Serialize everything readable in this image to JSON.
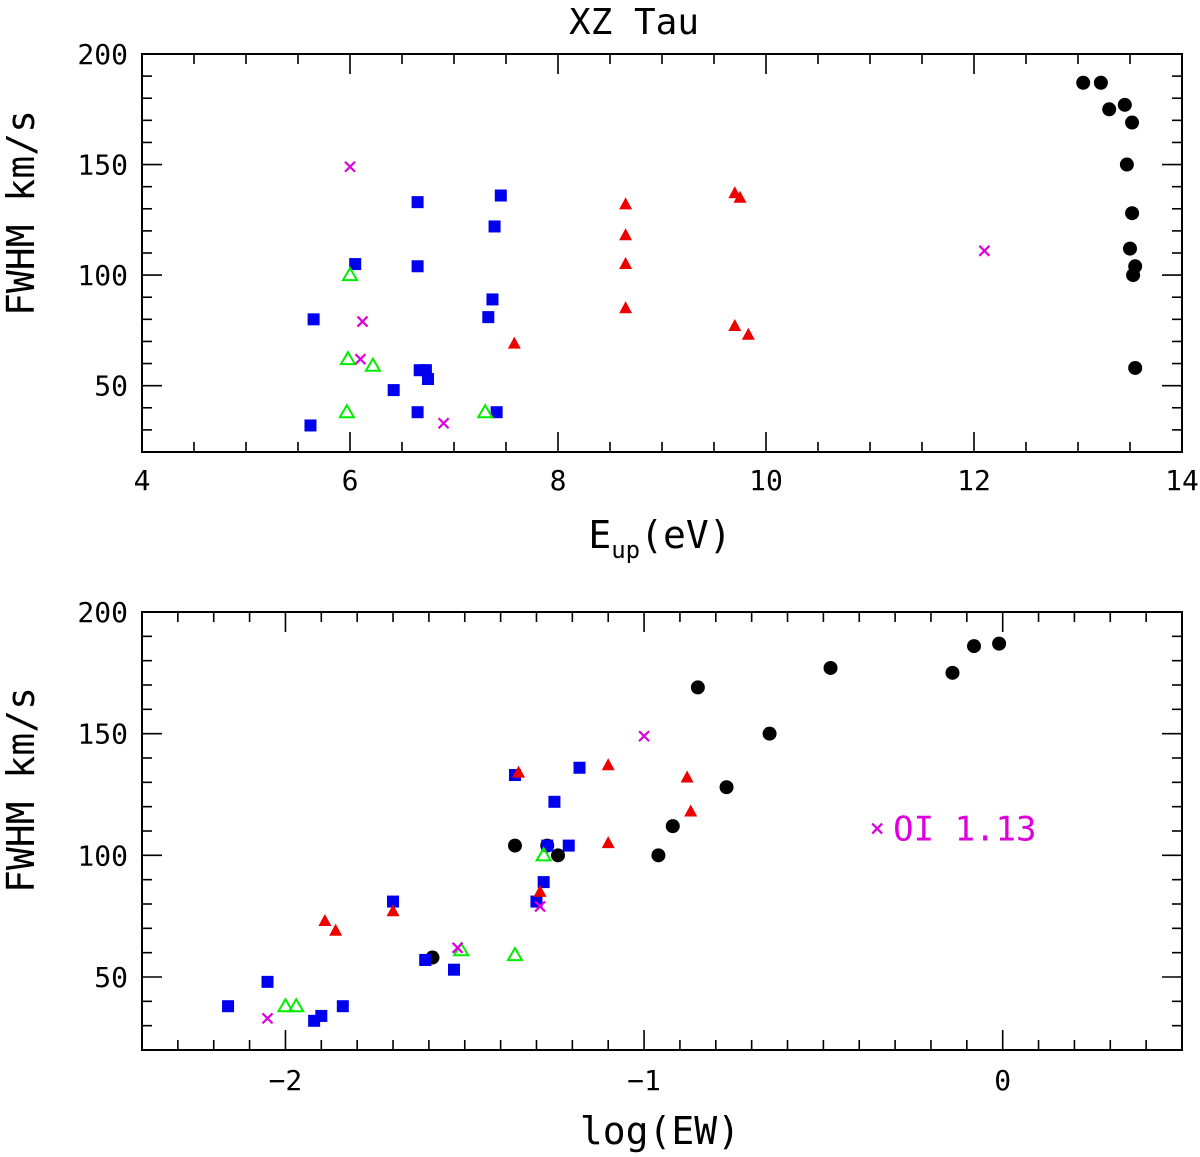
{
  "colors": {
    "black": "#000000",
    "blue": "#0000ee",
    "red": "#ee0000",
    "green": "#00ee00",
    "magenta": "#dd00dd"
  },
  "chart_data": [
    {
      "type": "scatter",
      "title": "XZ Tau",
      "xlabel": "E",
      "xlabel_sub": "up",
      "xlabel_unit": "(eV)",
      "ylabel": "FWHM km/s",
      "xlim": [
        4,
        14
      ],
      "ylim": [
        20,
        200
      ],
      "x_ticks": [
        4,
        6,
        8,
        10,
        12,
        14
      ],
      "x_tick_labels": [
        "4",
        "6",
        "8",
        "10",
        "12",
        "14"
      ],
      "y_ticks": [
        50,
        100,
        150,
        200
      ],
      "y_tick_labels": [
        "50",
        "100",
        "150",
        "200"
      ],
      "series": [
        {
          "name": "black-circles",
          "marker": "circle",
          "color": "black",
          "points": [
            [
              13.05,
              187
            ],
            [
              13.22,
              187
            ],
            [
              13.3,
              175
            ],
            [
              13.45,
              177
            ],
            [
              13.52,
              169
            ],
            [
              13.47,
              150
            ],
            [
              13.52,
              128
            ],
            [
              13.5,
              112
            ],
            [
              13.55,
              104
            ],
            [
              13.53,
              100
            ],
            [
              13.55,
              58
            ]
          ]
        },
        {
          "name": "blue-squares",
          "marker": "square",
          "color": "blue",
          "points": [
            [
              5.62,
              32
            ],
            [
              5.65,
              80
            ],
            [
              6.05,
              105
            ],
            [
              6.42,
              48
            ],
            [
              6.65,
              133
            ],
            [
              6.65,
              104
            ],
            [
              6.67,
              57
            ],
            [
              6.73,
              57
            ],
            [
              6.75,
              53
            ],
            [
              6.65,
              38
            ],
            [
              7.33,
              81
            ],
            [
              7.37,
              89
            ],
            [
              7.39,
              122
            ],
            [
              7.45,
              136
            ],
            [
              7.41,
              38
            ]
          ]
        },
        {
          "name": "red-triangles",
          "marker": "triangle",
          "color": "red",
          "points": [
            [
              7.58,
              69
            ],
            [
              8.65,
              132
            ],
            [
              8.65,
              118
            ],
            [
              8.65,
              105
            ],
            [
              8.65,
              85
            ],
            [
              9.7,
              137
            ],
            [
              9.75,
              135
            ],
            [
              9.7,
              77
            ],
            [
              9.83,
              73
            ]
          ]
        },
        {
          "name": "green-open-triangles",
          "marker": "open-triangle",
          "color": "green",
          "points": [
            [
              6.0,
              100
            ],
            [
              5.98,
              62
            ],
            [
              6.22,
              59
            ],
            [
              5.97,
              38
            ],
            [
              7.3,
              38
            ]
          ]
        },
        {
          "name": "magenta-crosses",
          "marker": "cross",
          "color": "magenta",
          "points": [
            [
              6.0,
              149
            ],
            [
              6.12,
              79
            ],
            [
              6.1,
              62
            ],
            [
              6.9,
              33
            ],
            [
              12.1,
              111
            ]
          ]
        }
      ]
    },
    {
      "type": "scatter",
      "title": "",
      "xlabel": "log(EW)",
      "ylabel": "FWHM km/s",
      "xlim": [
        -2.4,
        0.5
      ],
      "ylim": [
        20,
        200
      ],
      "x_ticks": [
        -2,
        -1,
        0
      ],
      "x_tick_labels": [
        "−2",
        "−1",
        "0"
      ],
      "y_ticks": [
        50,
        100,
        150,
        200
      ],
      "y_tick_labels": [
        "50",
        "100",
        "150",
        "200"
      ],
      "annotation": {
        "label": "OI 1.13",
        "x": -0.35,
        "y": 111,
        "marker": "cross",
        "color": "magenta"
      },
      "series": [
        {
          "name": "black-circles",
          "marker": "circle",
          "color": "black",
          "points": [
            [
              -0.01,
              187
            ],
            [
              -0.08,
              186
            ],
            [
              -0.14,
              175
            ],
            [
              -0.48,
              177
            ],
            [
              -0.85,
              169
            ],
            [
              -0.65,
              150
            ],
            [
              -0.77,
              128
            ],
            [
              -0.92,
              112
            ],
            [
              -0.96,
              100
            ],
            [
              -1.36,
              104
            ],
            [
              -1.27,
              104
            ],
            [
              -1.24,
              100
            ],
            [
              -1.59,
              58
            ]
          ]
        },
        {
          "name": "blue-squares",
          "marker": "square",
          "color": "blue",
          "points": [
            [
              -2.16,
              38
            ],
            [
              -2.05,
              48
            ],
            [
              -1.92,
              32
            ],
            [
              -1.9,
              34
            ],
            [
              -1.84,
              38
            ],
            [
              -1.7,
              81
            ],
            [
              -1.61,
              57
            ],
            [
              -1.61,
              57
            ],
            [
              -1.53,
              53
            ],
            [
              -1.36,
              133
            ],
            [
              -1.3,
              81
            ],
            [
              -1.28,
              89
            ],
            [
              -1.27,
              104
            ],
            [
              -1.25,
              122
            ],
            [
              -1.21,
              104
            ],
            [
              -1.18,
              136
            ]
          ]
        },
        {
          "name": "red-triangles",
          "marker": "triangle",
          "color": "red",
          "points": [
            [
              -1.89,
              73
            ],
            [
              -1.86,
              69
            ],
            [
              -1.7,
              77
            ],
            [
              -1.35,
              134
            ],
            [
              -1.29,
              85
            ],
            [
              -1.1,
              137
            ],
            [
              -1.1,
              105
            ],
            [
              -0.88,
              132
            ],
            [
              -0.87,
              118
            ]
          ]
        },
        {
          "name": "green-open-triangles",
          "marker": "open-triangle",
          "color": "green",
          "points": [
            [
              -2.0,
              38
            ],
            [
              -1.97,
              38
            ],
            [
              -1.51,
              61
            ],
            [
              -1.36,
              59
            ],
            [
              -1.28,
              100
            ]
          ]
        },
        {
          "name": "magenta-crosses",
          "marker": "cross",
          "color": "magenta",
          "points": [
            [
              -2.05,
              33
            ],
            [
              -1.52,
              62
            ],
            [
              -1.29,
              79
            ],
            [
              -1.0,
              149
            ]
          ]
        }
      ]
    }
  ]
}
